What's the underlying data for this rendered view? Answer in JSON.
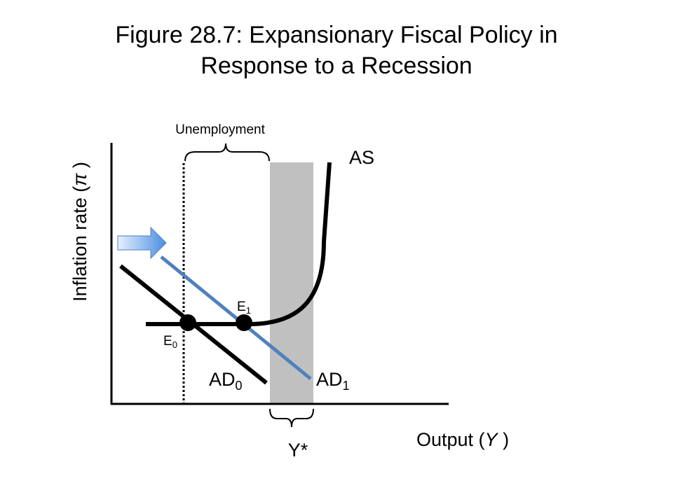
{
  "title": {
    "line1": "Figure 28.7: Expansionary Fiscal Policy in",
    "line2": "Response to a Recession"
  },
  "diagram": {
    "y_axis_label": {
      "text": "Inflation rate (",
      "symbol": "π",
      "close": " )"
    },
    "x_axis_label": {
      "text": "Output (",
      "symbol": "Y",
      "close": " )"
    },
    "as_label": "AS",
    "ad0_label": {
      "base": "AD",
      "sub": "0"
    },
    "ad1_label": {
      "base": "AD",
      "sub": "1"
    },
    "e0_label": {
      "base": "E",
      "sub": "0"
    },
    "e1_label": {
      "base": "E",
      "sub": "1"
    },
    "potential_output_label": "Y*",
    "unemployment_label": "Unemployment",
    "colors": {
      "ad1_line": "#4f81bd",
      "potential_band": "#c0c0c0",
      "arrow_light": "#e6f0ff",
      "arrow_dark": "#4a8fe0",
      "ink": "#000000"
    }
  }
}
